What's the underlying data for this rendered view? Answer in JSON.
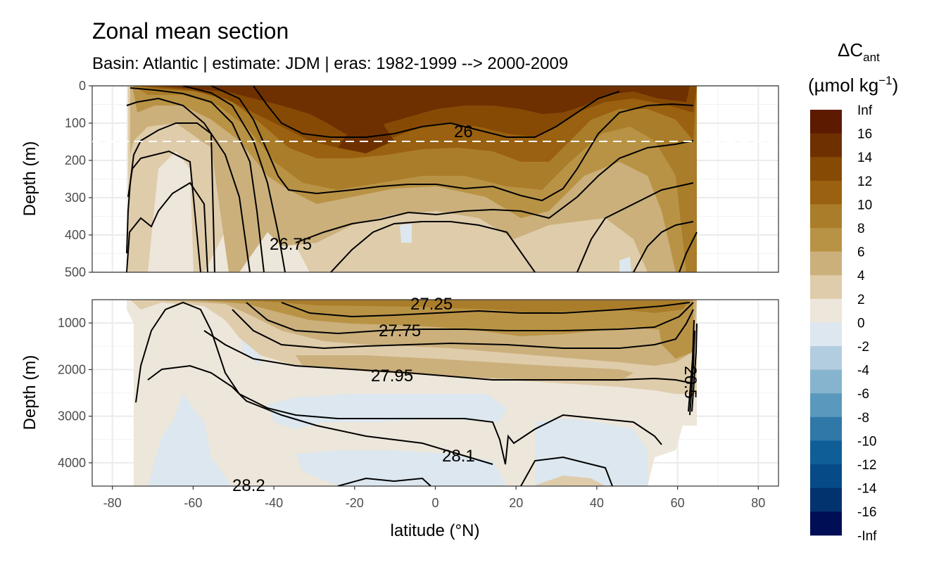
{
  "chart_data": {
    "type": "heatmap",
    "title": "Zonal mean section",
    "subtitle": "Basin: Atlantic | estimate: JDM  | eras: 1982-1999 --> 2000-2009",
    "xlabel": "latitude (°N)",
    "xlim": [
      -85,
      85
    ],
    "x_ticks": [
      "-80",
      "-60",
      "-40",
      "-20",
      "0",
      "20",
      "40",
      "60",
      "80"
    ],
    "panels": [
      {
        "name": "upper",
        "ylabel": "Depth (m)",
        "ylim": [
          0,
          500
        ],
        "y_ticks": [
          "0",
          "100",
          "200",
          "300",
          "400",
          "500"
        ],
        "reference_depth_m": 150
      },
      {
        "name": "lower",
        "ylabel": "Depth (m)",
        "ylim": [
          500,
          4500
        ],
        "y_ticks": [
          "1000",
          "2000",
          "3000",
          "4000"
        ]
      }
    ],
    "legend": {
      "title_main": "ΔC",
      "title_sub": "ant",
      "unit_pre": "(µmol kg",
      "unit_exp": "−1",
      "unit_post": ")",
      "labels": [
        "Inf",
        "16",
        "14",
        "12",
        "10",
        "8",
        "6",
        "4",
        "2",
        "0",
        "-2",
        "-4",
        "-6",
        "-8",
        "-10",
        "-12",
        "-14",
        "-16",
        "-Inf"
      ],
      "colors": [
        "#5c1a00",
        "#6e3000",
        "#874a05",
        "#9a6110",
        "#aa7d2a",
        "#b99345",
        "#cbb07c",
        "#dfccab",
        "#ede6da",
        "#dce7ef",
        "#b3cde0",
        "#86b4cf",
        "#5b98bd",
        "#2f78a8",
        "#105e98",
        "#064b87",
        "#03336e",
        "#000f55"
      ]
    },
    "contour_labels": [
      "26",
      "26.75",
      "27.25",
      "27.75",
      "27.95",
      "28.1",
      "28.2",
      "26.5"
    ],
    "fill_colors": {
      "b16": "#6e3000",
      "b14": "#874a05",
      "b12": "#9a6110",
      "b10": "#aa7d2a",
      "b8": "#b99345",
      "b6": "#cbb07c",
      "b4": "#dfccab",
      "b2": "#ede6da",
      "n0": "#dce7ef",
      "n2": "#b3cde0"
    }
  }
}
